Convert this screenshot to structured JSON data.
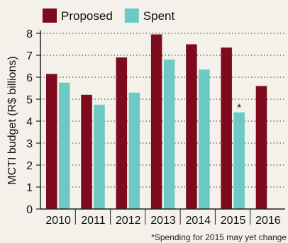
{
  "chart_data": {
    "type": "bar",
    "categories": [
      "2010",
      "2011",
      "2012",
      "2013",
      "2014",
      "2015",
      "2016"
    ],
    "series": [
      {
        "name": "Proposed",
        "color": "#7d0a1d",
        "values": [
          6.15,
          5.2,
          6.9,
          7.95,
          7.5,
          7.35,
          5.6
        ]
      },
      {
        "name": "Spent",
        "color": "#6cc9c4",
        "values": [
          5.75,
          4.75,
          5.3,
          6.8,
          6.35,
          4.4,
          null
        ]
      }
    ],
    "ylabel": "MCTI budget (R$ billions)",
    "ylim": [
      0,
      8
    ],
    "yticks": [
      0,
      1,
      2,
      3,
      4,
      5,
      6,
      7,
      8
    ],
    "grid": "horizontal dotted",
    "legend": "top-left",
    "annotations": [
      {
        "text": "*",
        "category": "2015",
        "series": "Spent"
      }
    ],
    "footnote": "*Spending for 2015 may yet change"
  }
}
